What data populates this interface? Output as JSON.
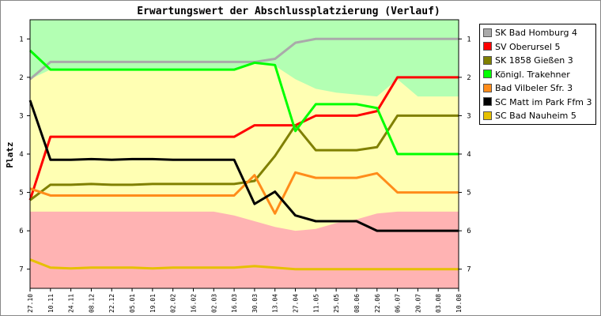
{
  "chart_data": {
    "type": "line",
    "title": "Erwartungswert der Abschlussplatzierung (Verlauf)",
    "xlabel": "",
    "ylabel": "Platz",
    "ylim": [
      7.5,
      0.5
    ],
    "y_inverted": true,
    "yticks": [
      1,
      2,
      3,
      4,
      5,
      6,
      7
    ],
    "x": [
      "27.10",
      "10.11",
      "24.11",
      "08.12",
      "22.12",
      "05.01",
      "19.01",
      "02.02",
      "16.02",
      "02.03",
      "16.03",
      "30.03",
      "13.04",
      "27.04",
      "11.05",
      "25.05",
      "08.06",
      "22.06",
      "06.07",
      "20.07",
      "03.08",
      "10.08"
    ],
    "zones": [
      {
        "name": "promotion",
        "color": "#b3ffb3",
        "boundary": [
          2.05,
          1.8,
          1.8,
          1.8,
          1.8,
          1.8,
          1.8,
          1.8,
          1.8,
          1.8,
          1.8,
          1.65,
          1.7,
          2.05,
          2.3,
          2.4,
          2.45,
          2.5,
          2.05,
          2.5,
          2.5,
          2.5
        ]
      },
      {
        "name": "midfield",
        "color": "#ffffb3",
        "boundary": [
          5.5,
          5.5,
          5.5,
          5.5,
          5.5,
          5.5,
          5.5,
          5.5,
          5.5,
          5.5,
          5.6,
          5.75,
          5.9,
          6.0,
          5.95,
          5.8,
          5.7,
          5.55,
          5.5,
          5.5,
          5.5,
          5.5
        ]
      },
      {
        "name": "relegation",
        "color": "#ffb3b3"
      }
    ],
    "series": [
      {
        "name": "SK Bad Homburg 4",
        "color": "#aaaaaa",
        "values": [
          2.05,
          1.6,
          1.6,
          1.6,
          1.6,
          1.6,
          1.6,
          1.6,
          1.6,
          1.6,
          1.6,
          1.6,
          1.52,
          1.1,
          1.0,
          1.0,
          1.0,
          1.0,
          1.0,
          1.0,
          1.0,
          1.0
        ]
      },
      {
        "name": "SV Oberursel 5",
        "color": "#ff0000",
        "values": [
          5.2,
          3.55,
          3.55,
          3.55,
          3.55,
          3.55,
          3.55,
          3.55,
          3.55,
          3.55,
          3.55,
          3.25,
          3.25,
          3.25,
          3.0,
          3.0,
          3.0,
          2.88,
          2.0,
          2.0,
          2.0,
          2.0
        ]
      },
      {
        "name": "SK 1858 Gießen 3",
        "color": "#808000",
        "values": [
          5.2,
          4.8,
          4.8,
          4.78,
          4.8,
          4.8,
          4.78,
          4.78,
          4.78,
          4.78,
          4.78,
          4.7,
          4.05,
          3.25,
          3.9,
          3.9,
          3.9,
          3.82,
          3.0,
          3.0,
          3.0,
          3.0
        ]
      },
      {
        "name": "Königl. Trakehner",
        "color": "#00ff00",
        "values": [
          1.3,
          1.8,
          1.8,
          1.8,
          1.8,
          1.8,
          1.8,
          1.8,
          1.8,
          1.8,
          1.8,
          1.62,
          1.68,
          3.4,
          2.7,
          2.7,
          2.7,
          2.8,
          4.0,
          4.0,
          4.0,
          4.0
        ]
      },
      {
        "name": "Bad Vilbeler Sfr. 3",
        "color": "#ff8c1a",
        "values": [
          4.9,
          5.08,
          5.08,
          5.08,
          5.08,
          5.08,
          5.08,
          5.08,
          5.08,
          5.08,
          5.08,
          4.55,
          5.55,
          4.48,
          4.62,
          4.62,
          4.62,
          4.5,
          5.0,
          5.0,
          5.0,
          5.0
        ]
      },
      {
        "name": "SC Matt im Park Ffm 3",
        "color": "#000000",
        "values": [
          2.6,
          4.15,
          4.15,
          4.13,
          4.15,
          4.13,
          4.13,
          4.15,
          4.15,
          4.15,
          4.15,
          5.3,
          4.98,
          5.6,
          5.75,
          5.75,
          5.75,
          6.0,
          6.0,
          6.0,
          6.0,
          6.0
        ]
      },
      {
        "name": "SC Bad Nauheim 5",
        "color": "#e6c000",
        "values": [
          6.75,
          6.96,
          6.98,
          6.96,
          6.96,
          6.96,
          6.98,
          6.96,
          6.96,
          6.96,
          6.96,
          6.92,
          6.96,
          7.0,
          7.0,
          7.0,
          7.0,
          7.0,
          7.0,
          7.0,
          7.0,
          7.0
        ]
      }
    ],
    "legend_position": "right",
    "grid": false
  }
}
